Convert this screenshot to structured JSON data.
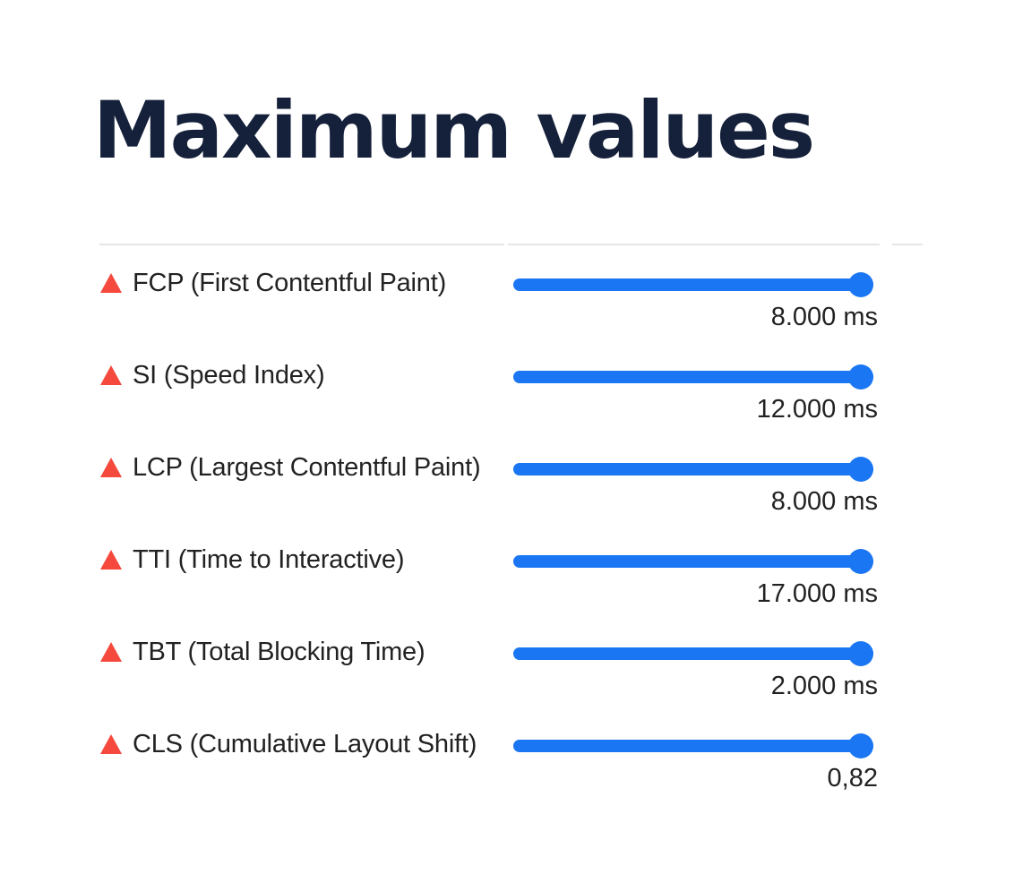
{
  "page": {
    "title": "Maximum values"
  },
  "colors": {
    "title": "#15213a",
    "accent": "#1a76f2",
    "warning": "#f4493c",
    "divider": "#e6e6e6"
  },
  "metrics": [
    {
      "label": "FCP (First Contentful Paint)",
      "value": "8.000 ms",
      "icon": "warning-triangle-icon",
      "slider_fraction": 1.0
    },
    {
      "label": "SI (Speed Index)",
      "value": "12.000 ms",
      "icon": "warning-triangle-icon",
      "slider_fraction": 1.0
    },
    {
      "label": "LCP (Largest Contentful Paint)",
      "value": "8.000 ms",
      "icon": "warning-triangle-icon",
      "slider_fraction": 1.0
    },
    {
      "label": "TTI (Time to Interactive)",
      "value": "17.000 ms",
      "icon": "warning-triangle-icon",
      "slider_fraction": 1.0
    },
    {
      "label": "TBT (Total Blocking Time)",
      "value": "2.000 ms",
      "icon": "warning-triangle-icon",
      "slider_fraction": 1.0
    },
    {
      "label": "CLS (Cumulative Layout Shift)",
      "value": "0,82",
      "icon": "warning-triangle-icon",
      "slider_fraction": 1.0
    }
  ]
}
